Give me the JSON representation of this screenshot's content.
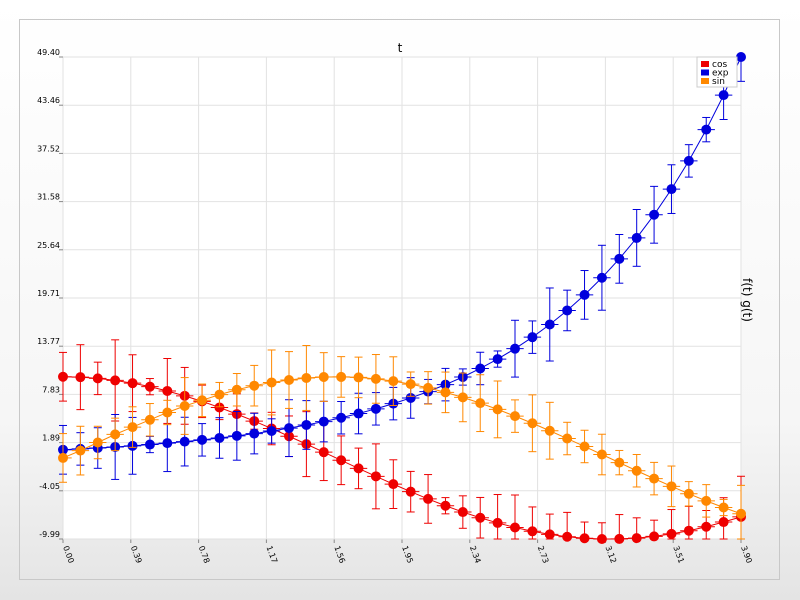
{
  "chart_data": {
    "type": "line",
    "title": "t",
    "xlabel": "",
    "ylabel": "f(t) g(t)",
    "xlim": [
      0,
      3.9
    ],
    "ylim": [
      -9.99,
      49.4
    ],
    "x_ticks": [
      "0.00",
      "0.39",
      "0.78",
      "1.17",
      "1.56",
      "1.95",
      "2.34",
      "2.73",
      "3.12",
      "3.51",
      "3.90"
    ],
    "y_ticks": [
      "49.40",
      "43.46",
      "37.52",
      "31.58",
      "25.64",
      "19.71",
      "13.77",
      "7.83",
      "1.89",
      "-4.05",
      "-9.99"
    ],
    "grid": true,
    "legend_position": "top-right",
    "x": [
      0.0,
      0.1,
      0.2,
      0.3,
      0.4,
      0.5,
      0.6,
      0.7,
      0.8,
      0.9,
      1.0,
      1.1,
      1.2,
      1.3,
      1.4,
      1.5,
      1.6,
      1.7,
      1.8,
      1.9,
      2.0,
      2.1,
      2.2,
      2.3,
      2.4,
      2.5,
      2.6,
      2.7,
      2.8,
      2.9,
      3.0,
      3.1,
      3.2,
      3.3,
      3.4,
      3.5,
      3.6,
      3.7,
      3.8,
      3.9
    ],
    "series": [
      {
        "name": "cos",
        "color": "#ee0000",
        "values": [
          10.0,
          9.95,
          9.8,
          9.55,
          9.21,
          8.78,
          8.25,
          7.65,
          6.97,
          6.22,
          5.4,
          4.54,
          3.62,
          2.67,
          1.7,
          0.71,
          -0.29,
          -1.29,
          -2.27,
          -3.23,
          -4.16,
          -5.05,
          -5.89,
          -6.67,
          -7.37,
          -8.01,
          -8.57,
          -9.04,
          -9.42,
          -9.71,
          -9.9,
          -9.99,
          -9.98,
          -9.88,
          -9.67,
          -9.36,
          -8.97,
          -8.48,
          -7.9,
          -7.26
        ],
        "errors": [
          3.0,
          4.0,
          2.0,
          5.0,
          3.5,
          1.0,
          4.0,
          3.5,
          2.0,
          1.5,
          2.5,
          1.0,
          2.0,
          2.5,
          4.0,
          3.5,
          3.0,
          2.5,
          4.0,
          3.0,
          2.5,
          3.0,
          1.0,
          2.0,
          2.5,
          3.5,
          4.0,
          3.0,
          2.5,
          3.0,
          2.0,
          2.0,
          3.0,
          2.5,
          2.0,
          3.0,
          3.0,
          2.0,
          3.0,
          5.0
        ]
      },
      {
        "name": "exp",
        "color": "#0000dd",
        "values": [
          1.0,
          1.11,
          1.22,
          1.35,
          1.49,
          1.65,
          1.82,
          2.01,
          2.23,
          2.46,
          2.72,
          3.0,
          3.32,
          3.67,
          4.06,
          4.48,
          4.95,
          5.47,
          6.05,
          6.69,
          7.39,
          8.17,
          9.03,
          9.97,
          11.02,
          12.18,
          13.46,
          14.88,
          16.44,
          18.17,
          20.09,
          22.2,
          24.53,
          27.11,
          29.96,
          33.12,
          36.6,
          40.45,
          44.7,
          49.4
        ],
        "errors": [
          3.0,
          2.0,
          2.5,
          4.0,
          3.5,
          1.0,
          3.5,
          3.0,
          2.0,
          2.5,
          3.0,
          2.5,
          1.5,
          3.5,
          3.0,
          2.5,
          2.0,
          2.5,
          2.0,
          2.0,
          2.5,
          1.5,
          2.0,
          1.0,
          2.0,
          1.0,
          3.5,
          2.0,
          4.5,
          2.5,
          3.0,
          4.0,
          3.0,
          3.5,
          3.5,
          3.0,
          2.0,
          1.5,
          3.0,
          3.0
        ]
      },
      {
        "name": "sin",
        "color": "#ff8800",
        "values": [
          0.0,
          0.9,
          1.9,
          2.9,
          3.8,
          4.7,
          5.6,
          6.4,
          7.1,
          7.8,
          8.4,
          8.9,
          9.3,
          9.6,
          9.85,
          9.97,
          9.98,
          9.92,
          9.74,
          9.46,
          9.09,
          8.63,
          8.08,
          7.46,
          6.75,
          5.98,
          5.15,
          4.27,
          3.35,
          2.39,
          1.41,
          0.42,
          -0.58,
          -1.58,
          -2.55,
          -3.5,
          -4.42,
          -5.29,
          -6.11,
          -6.88
        ],
        "errors": [
          3.0,
          3.0,
          2.0,
          2.0,
          2.5,
          2.0,
          1.5,
          3.5,
          2.0,
          1.5,
          2.0,
          2.5,
          4.0,
          3.5,
          4.0,
          3.0,
          2.5,
          2.5,
          3.0,
          3.0,
          1.5,
          2.0,
          2.5,
          3.0,
          3.5,
          3.5,
          2.0,
          3.5,
          3.5,
          2.0,
          2.0,
          2.5,
          1.5,
          2.0,
          2.0,
          2.5,
          1.5,
          2.0,
          1.0,
          3.5
        ]
      }
    ]
  }
}
